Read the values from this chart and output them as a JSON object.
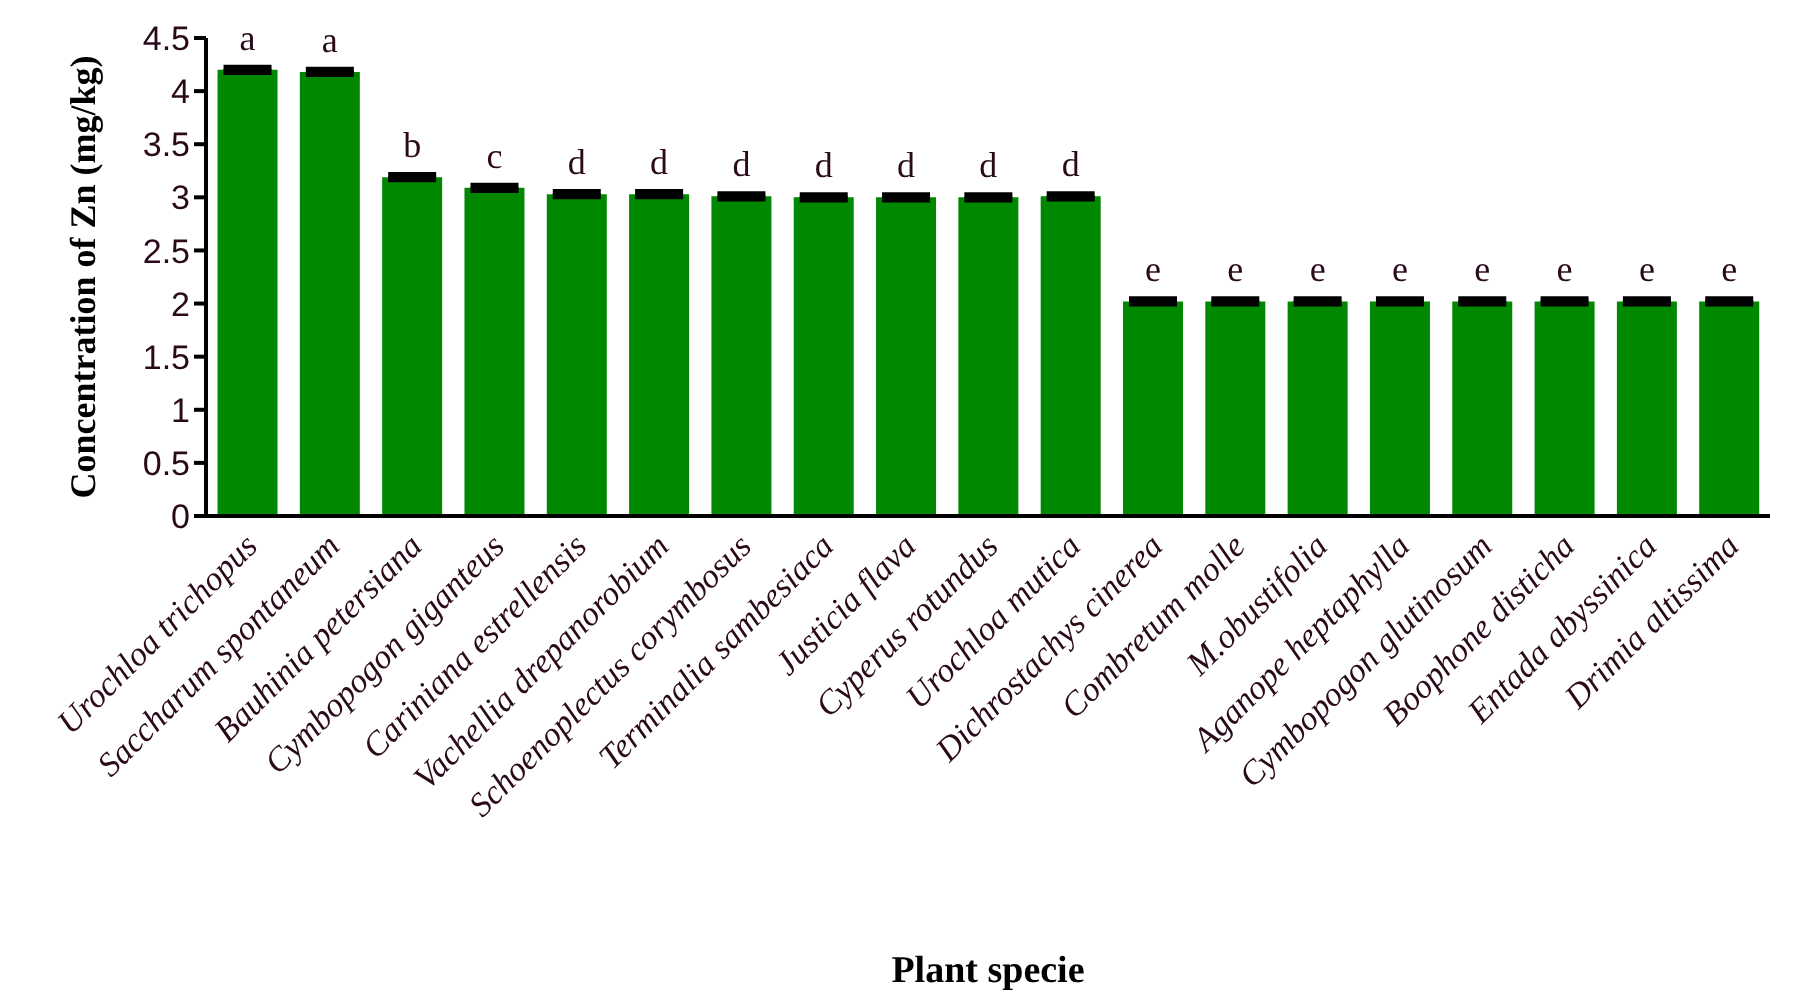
{
  "chart_data": {
    "type": "bar",
    "xlabel": "Plant specie",
    "ylabel": "Concentration of Zn (mg/kg)",
    "categories": [
      "Urochloa trichopus",
      "Saccharum spontaneum",
      "Bauhinia petersiana",
      "Cymbopogon giganteus",
      "Cariniana estrellensis",
      "Vachellia drepanorobium",
      "Schoenoplectus corymbosus",
      "Terminalia sambesiaca",
      "Justicia flava",
      "Cyperus rotundus",
      "Urochloa mutica",
      "Dichrostachys cinerea",
      "Combretum molle",
      "M.obustifolia",
      "Aganope heptaphylla",
      "Cymbopogon glutinosum",
      "Boophone disticha",
      "Entada abyssinica",
      "Drimia altissima"
    ],
    "values": [
      4.2,
      4.18,
      3.19,
      3.09,
      3.03,
      3.03,
      3.01,
      3.0,
      3.0,
      3.0,
      3.01,
      2.02,
      2.02,
      2.02,
      2.02,
      2.02,
      2.02,
      2.02,
      2.02
    ],
    "errors": [
      0.02,
      0.02,
      0.02,
      0.02,
      0.02,
      0.02,
      0.02,
      0.02,
      0.02,
      0.02,
      0.02,
      0.02,
      0.02,
      0.02,
      0.02,
      0.02,
      0.02,
      0.02,
      0.02
    ],
    "color": "#008800",
    "ylim": [
      0,
      4.5
    ],
    "yticks": [
      0,
      0.5,
      1,
      1.5,
      2,
      2.5,
      3,
      3.5,
      4,
      4.5
    ],
    "annotations": [
      {
        "text": "a",
        "x": "Urochloa trichopus",
        "y": 4.2
      },
      {
        "text": "a",
        "x": "Saccharum spontaneum",
        "y": 4.18
      },
      {
        "text": "b",
        "x": "Bauhinia petersiana",
        "y": 3.19
      },
      {
        "text": "c",
        "x": "Cymbopogon giganteus",
        "y": 3.09
      },
      {
        "text": "d",
        "x": "Cariniana estrellensis",
        "y": 3.03
      },
      {
        "text": "d",
        "x": "Vachellia drepanorobium",
        "y": 3.03
      },
      {
        "text": "d",
        "x": "Schoenoplectus corymbosus",
        "y": 3.01
      },
      {
        "text": "d",
        "x": "Terminalia sambesiaca",
        "y": 3.0
      },
      {
        "text": "d",
        "x": "Justicia flava",
        "y": 3.0
      },
      {
        "text": "d",
        "x": "Cyperus rotundus",
        "y": 3.0
      },
      {
        "text": "d",
        "x": "Urochloa mutica",
        "y": 3.01
      },
      {
        "text": "e",
        "x": "Dichrostachys cinerea",
        "y": 2.02
      },
      {
        "text": "e",
        "x": "Combretum molle",
        "y": 2.02
      },
      {
        "text": "e",
        "x": "M.obustifolia",
        "y": 2.02
      },
      {
        "text": "e",
        "x": "Aganope heptaphylla",
        "y": 2.02
      },
      {
        "text": "e",
        "x": "Cymbopogon glutinosum",
        "y": 2.02
      },
      {
        "text": "e",
        "x": "Boophone disticha",
        "y": 2.02
      },
      {
        "text": "e",
        "x": "Entada abyssinica",
        "y": 2.02
      },
      {
        "text": "e",
        "x": "Drimia altissima",
        "y": 2.02
      }
    ]
  }
}
